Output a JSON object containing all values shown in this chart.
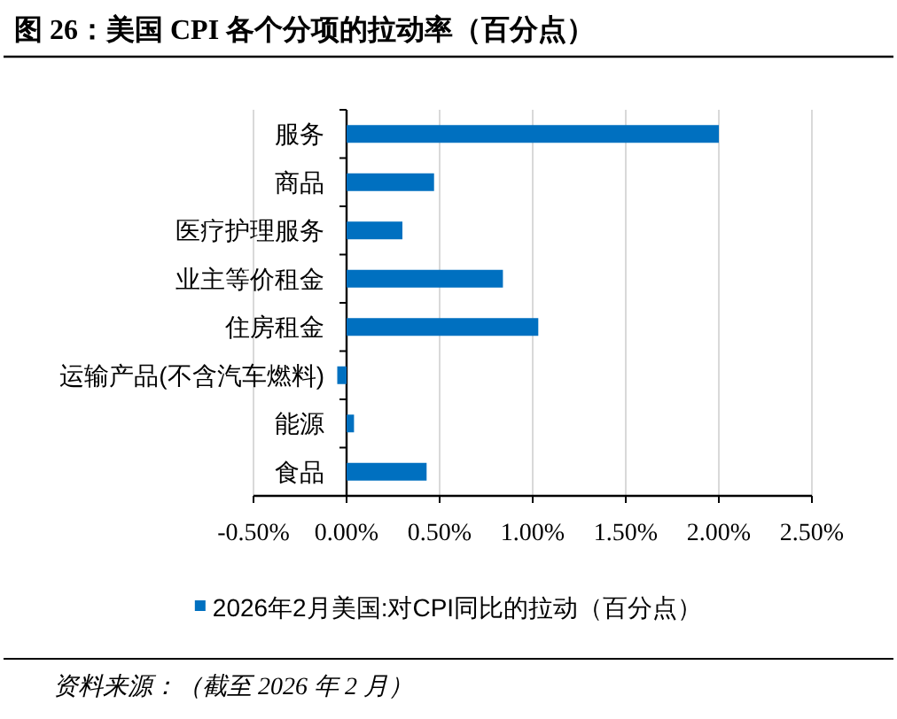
{
  "chart_data": {
    "type": "bar",
    "orientation": "horizontal",
    "title": "图 26：美国 CPI 各个分项的拉动率（百分点）",
    "categories": [
      "服务",
      "商品",
      "医疗护理服务",
      "业主等价租金",
      "住房租金",
      "运输产品(不含汽车燃料)",
      "能源",
      "食品"
    ],
    "series": [
      {
        "name": "2026年2月美国:对CPI同比的拉动（百分点）",
        "color": "#0070c0",
        "values": [
          2.0,
          0.47,
          0.3,
          0.84,
          1.03,
          -0.05,
          0.04,
          0.43
        ]
      }
    ],
    "xlim": [
      -0.5,
      2.5
    ],
    "xticks": [
      {
        "value": -0.5,
        "label": "-0.50%"
      },
      {
        "value": 0,
        "label": "0.00%"
      },
      {
        "value": 0.5,
        "label": "0.50%"
      },
      {
        "value": 1,
        "label": "1.00%"
      },
      {
        "value": 1.5,
        "label": "1.50%"
      },
      {
        "value": 2,
        "label": "2.00%"
      },
      {
        "value": 2.5,
        "label": "2.50%"
      }
    ],
    "grid": "x",
    "legend": "bottom",
    "annotations": [
      "资料来源：（截至 2026 年 2 月）"
    ]
  }
}
